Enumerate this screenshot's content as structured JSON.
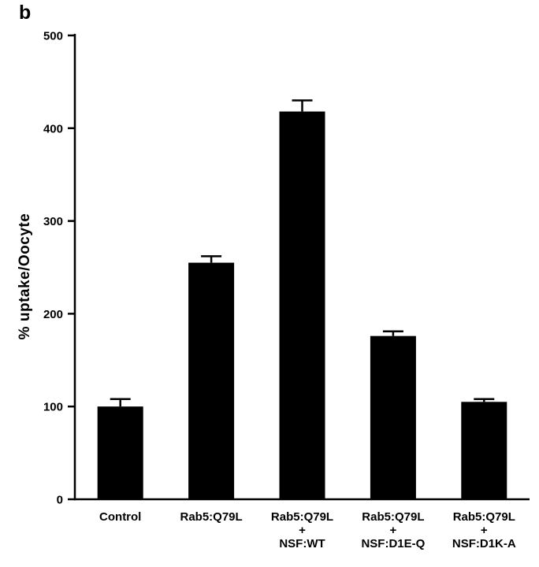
{
  "panel_label": "b",
  "chart_data": {
    "type": "bar",
    "title": "",
    "xlabel": "",
    "ylabel": "% uptake/Oocyte",
    "ylim": [
      0,
      500
    ],
    "yticks": [
      0,
      100,
      200,
      300,
      400,
      500
    ],
    "grid": false,
    "legend": null,
    "bar_color": "#000000",
    "axis_color": "#000000",
    "categories": [
      "Control",
      "Rab5:Q79L",
      "Rab5:Q79L + NSF:WT",
      "Rab5:Q79L + NSF:D1E-Q",
      "Rab5:Q79L + NSF:D1K-A"
    ],
    "category_label_lines": [
      [
        "Control"
      ],
      [
        "Rab5:Q79L"
      ],
      [
        "Rab5:Q79L",
        "+",
        "NSF:WT"
      ],
      [
        "Rab5:Q79L",
        "+",
        "NSF:D1E-Q"
      ],
      [
        "Rab5:Q79L",
        "+",
        "NSF:D1K-A"
      ]
    ],
    "values": [
      100,
      255,
      418,
      176,
      105
    ],
    "errors": [
      8,
      7,
      12,
      5,
      3
    ]
  }
}
